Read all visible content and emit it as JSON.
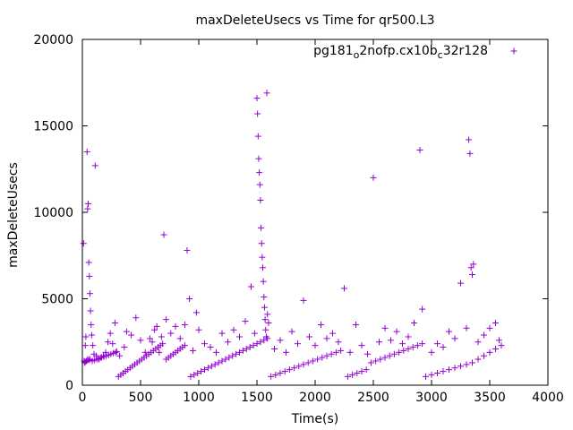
{
  "chart_data": {
    "type": "scatter",
    "title": "maxDeleteUsecs vs Time for qr500.L3",
    "xlabel": "Time(s)",
    "ylabel": "maxDeleteUsecs",
    "xlim": [
      0,
      4000
    ],
    "ylim": [
      0,
      20000
    ],
    "xticks": [
      0,
      500,
      1000,
      1500,
      2000,
      2500,
      3000,
      3500,
      4000
    ],
    "yticks": [
      0,
      5000,
      10000,
      15000,
      20000
    ],
    "grid": false,
    "legend": "top-right",
    "marker": "plus",
    "color": "#9400d3",
    "series": [
      {
        "name_parts": [
          {
            "text": "pg181",
            "sub": false
          },
          {
            "text": "o",
            "sub": true
          },
          {
            "text": "2nofp.cx10b",
            "sub": false
          },
          {
            "text": "c",
            "sub": true
          },
          {
            "text": "32r128",
            "sub": false
          }
        ],
        "points": [
          [
            10,
            8200
          ],
          [
            20,
            1300
          ],
          [
            25,
            2300
          ],
          [
            30,
            2800
          ],
          [
            35,
            1400
          ],
          [
            40,
            13500
          ],
          [
            45,
            10200
          ],
          [
            50,
            10500
          ],
          [
            55,
            7100
          ],
          [
            60,
            6300
          ],
          [
            65,
            5300
          ],
          [
            70,
            4300
          ],
          [
            75,
            3500
          ],
          [
            80,
            2900
          ],
          [
            90,
            2300
          ],
          [
            100,
            1800
          ],
          [
            110,
            12700
          ],
          [
            120,
            1700
          ],
          [
            140,
            1500
          ],
          [
            160,
            1600
          ],
          [
            180,
            1700
          ],
          [
            200,
            1900
          ],
          [
            220,
            2500
          ],
          [
            240,
            3000
          ],
          [
            260,
            2400
          ],
          [
            280,
            3600
          ],
          [
            15,
            1400
          ],
          [
            25,
            1350
          ],
          [
            45,
            1500
          ],
          [
            55,
            1450
          ],
          [
            65,
            1500
          ],
          [
            85,
            1400
          ],
          [
            105,
            1450
          ],
          [
            125,
            1500
          ],
          [
            145,
            1550
          ],
          [
            165,
            1600
          ],
          [
            185,
            1650
          ],
          [
            205,
            1700
          ],
          [
            225,
            1750
          ],
          [
            245,
            1800
          ],
          [
            265,
            1850
          ],
          [
            285,
            1900
          ],
          [
            295,
            1950
          ],
          [
            310,
            500
          ],
          [
            330,
            600
          ],
          [
            350,
            700
          ],
          [
            370,
            800
          ],
          [
            390,
            900
          ],
          [
            410,
            1000
          ],
          [
            430,
            1100
          ],
          [
            450,
            1200
          ],
          [
            470,
            1300
          ],
          [
            490,
            1400
          ],
          [
            510,
            1500
          ],
          [
            530,
            1600
          ],
          [
            550,
            1700
          ],
          [
            570,
            1800
          ],
          [
            590,
            1900
          ],
          [
            610,
            2000
          ],
          [
            630,
            2100
          ],
          [
            650,
            2200
          ],
          [
            670,
            2300
          ],
          [
            690,
            2400
          ],
          [
            320,
            1700
          ],
          [
            360,
            2200
          ],
          [
            380,
            3100
          ],
          [
            420,
            2900
          ],
          [
            460,
            3900
          ],
          [
            500,
            2600
          ],
          [
            540,
            1900
          ],
          [
            580,
            2700
          ],
          [
            620,
            3200
          ],
          [
            660,
            1900
          ],
          [
            700,
            8700
          ],
          [
            640,
            3400
          ],
          [
            680,
            2800
          ],
          [
            600,
            2500
          ],
          [
            720,
            1500
          ],
          [
            740,
            1600
          ],
          [
            760,
            1700
          ],
          [
            780,
            1800
          ],
          [
            800,
            1900
          ],
          [
            820,
            2000
          ],
          [
            840,
            2100
          ],
          [
            860,
            2200
          ],
          [
            880,
            2300
          ],
          [
            720,
            3800
          ],
          [
            760,
            3000
          ],
          [
            800,
            3400
          ],
          [
            840,
            2700
          ],
          [
            880,
            3500
          ],
          [
            900,
            7800
          ],
          [
            920,
            5000
          ],
          [
            930,
            500
          ],
          [
            960,
            600
          ],
          [
            990,
            700
          ],
          [
            1020,
            800
          ],
          [
            1050,
            900
          ],
          [
            1080,
            1000
          ],
          [
            1110,
            1100
          ],
          [
            1140,
            1200
          ],
          [
            1170,
            1300
          ],
          [
            1200,
            1400
          ],
          [
            1230,
            1500
          ],
          [
            1260,
            1600
          ],
          [
            1290,
            1700
          ],
          [
            1320,
            1800
          ],
          [
            1350,
            1900
          ],
          [
            1380,
            2000
          ],
          [
            1410,
            2100
          ],
          [
            1440,
            2200
          ],
          [
            1470,
            2300
          ],
          [
            1500,
            2400
          ],
          [
            1530,
            2500
          ],
          [
            1560,
            2600
          ],
          [
            1590,
            2700
          ],
          [
            950,
            2000
          ],
          [
            980,
            4200
          ],
          [
            1000,
            3200
          ],
          [
            1050,
            2400
          ],
          [
            1100,
            2200
          ],
          [
            1150,
            1900
          ],
          [
            1200,
            3000
          ],
          [
            1250,
            2500
          ],
          [
            1300,
            3200
          ],
          [
            1350,
            2800
          ],
          [
            1400,
            3700
          ],
          [
            1450,
            5700
          ],
          [
            1480,
            3000
          ],
          [
            1500,
            16600
          ],
          [
            1505,
            15700
          ],
          [
            1510,
            14400
          ],
          [
            1515,
            13100
          ],
          [
            1520,
            12300
          ],
          [
            1525,
            11600
          ],
          [
            1530,
            10700
          ],
          [
            1535,
            9100
          ],
          [
            1540,
            8200
          ],
          [
            1545,
            7400
          ],
          [
            1550,
            6800
          ],
          [
            1555,
            6000
          ],
          [
            1560,
            5100
          ],
          [
            1565,
            4500
          ],
          [
            1570,
            3800
          ],
          [
            1575,
            3200
          ],
          [
            1580,
            2800
          ],
          [
            1585,
            16900
          ],
          [
            1590,
            4100
          ],
          [
            1600,
            3600
          ],
          [
            1620,
            500
          ],
          [
            1660,
            600
          ],
          [
            1700,
            700
          ],
          [
            1740,
            800
          ],
          [
            1780,
            900
          ],
          [
            1820,
            1000
          ],
          [
            1860,
            1100
          ],
          [
            1900,
            1200
          ],
          [
            1940,
            1300
          ],
          [
            1980,
            1400
          ],
          [
            2020,
            1500
          ],
          [
            2060,
            1600
          ],
          [
            2100,
            1700
          ],
          [
            2140,
            1800
          ],
          [
            2180,
            1900
          ],
          [
            2220,
            2000
          ],
          [
            1650,
            2100
          ],
          [
            1700,
            2600
          ],
          [
            1750,
            1900
          ],
          [
            1800,
            3100
          ],
          [
            1850,
            2400
          ],
          [
            1900,
            4900
          ],
          [
            1950,
            2800
          ],
          [
            2000,
            2300
          ],
          [
            2050,
            3500
          ],
          [
            2100,
            2700
          ],
          [
            2150,
            3000
          ],
          [
            2200,
            2500
          ],
          [
            2250,
            5600
          ],
          [
            2280,
            500
          ],
          [
            2320,
            600
          ],
          [
            2360,
            700
          ],
          [
            2400,
            800
          ],
          [
            2440,
            900
          ],
          [
            2480,
            1300
          ],
          [
            2520,
            1400
          ],
          [
            2560,
            1500
          ],
          [
            2600,
            1600
          ],
          [
            2640,
            1700
          ],
          [
            2680,
            1800
          ],
          [
            2720,
            1900
          ],
          [
            2760,
            2000
          ],
          [
            2800,
            2100
          ],
          [
            2840,
            2200
          ],
          [
            2880,
            2300
          ],
          [
            2920,
            2400
          ],
          [
            2300,
            1900
          ],
          [
            2350,
            3500
          ],
          [
            2400,
            2300
          ],
          [
            2450,
            1800
          ],
          [
            2500,
            12000
          ],
          [
            2550,
            2500
          ],
          [
            2600,
            3300
          ],
          [
            2650,
            2600
          ],
          [
            2700,
            3100
          ],
          [
            2750,
            2400
          ],
          [
            2800,
            2800
          ],
          [
            2850,
            3600
          ],
          [
            2900,
            13600
          ],
          [
            2920,
            4400
          ],
          [
            2950,
            500
          ],
          [
            3000,
            600
          ],
          [
            3050,
            700
          ],
          [
            3100,
            800
          ],
          [
            3150,
            900
          ],
          [
            3200,
            1000
          ],
          [
            3250,
            1100
          ],
          [
            3300,
            1200
          ],
          [
            3350,
            1300
          ],
          [
            3400,
            1500
          ],
          [
            3450,
            1700
          ],
          [
            3500,
            1900
          ],
          [
            3550,
            2100
          ],
          [
            3600,
            2300
          ],
          [
            3000,
            1900
          ],
          [
            3050,
            2400
          ],
          [
            3100,
            2200
          ],
          [
            3150,
            3100
          ],
          [
            3200,
            2700
          ],
          [
            3250,
            5900
          ],
          [
            3300,
            3300
          ],
          [
            3320,
            14200
          ],
          [
            3330,
            13400
          ],
          [
            3340,
            6800
          ],
          [
            3350,
            6400
          ],
          [
            3360,
            7000
          ],
          [
            3400,
            2500
          ],
          [
            3450,
            2900
          ],
          [
            3500,
            3300
          ],
          [
            3550,
            3600
          ],
          [
            3580,
            2600
          ]
        ]
      }
    ]
  }
}
